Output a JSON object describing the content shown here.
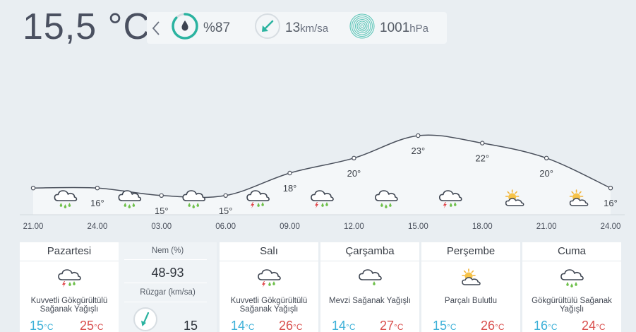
{
  "current": {
    "temperature": "15,5 °C",
    "humidity": "%87",
    "wind_value": "13",
    "wind_unit": "km/sa",
    "pressure_value": "1001",
    "pressure_unit": "hPa"
  },
  "chart_data": {
    "type": "line",
    "x": [
      "21.00",
      "24.00",
      "03.00",
      "06.00",
      "09.00",
      "12.00",
      "15.00",
      "18.00",
      "21.00",
      "24.00"
    ],
    "series": [
      {
        "values": [
          16,
          16,
          15,
          15,
          18,
          20,
          23,
          22,
          20,
          16
        ]
      }
    ],
    "value_labels": [
      "16°",
      "15°",
      "15°",
      "18°",
      "20°",
      "23°",
      "22°",
      "20°",
      "16°"
    ],
    "icons": [
      "rain-cloud",
      "rain-cloud",
      "rain-cloud",
      "thunder-rain-cloud",
      "thunder-rain-cloud",
      "rain-cloud",
      "thunder-rain-cloud",
      "sun-cloud",
      "sun-cloud"
    ],
    "grid": false
  },
  "extra": {
    "humidity_label": "Nem (%)",
    "humidity_range": "48-93",
    "wind_label": "Rüzgar (km/sa)",
    "wind_value": "15"
  },
  "days": [
    {
      "name": "Pazartesi",
      "icon": "thunder-rain-cloud",
      "desc": "Kuvvetli Gökgürültülü Sağanak Yağışlı",
      "min": "15",
      "max": "25",
      "unit": "°C"
    },
    {
      "name": "Salı",
      "icon": "thunder-rain-cloud",
      "desc": "Kuvvetli Gökgürültülü Sağanak Yağışlı",
      "min": "14",
      "max": "26",
      "unit": "°C"
    },
    {
      "name": "Çarşamba",
      "icon": "drizzle-cloud",
      "desc": "Mevzi Sağanak Yağışlı",
      "min": "14",
      "max": "27",
      "unit": "°C"
    },
    {
      "name": "Perşembe",
      "icon": "sun-cloud",
      "desc": "Parçalı Bulutlu",
      "min": "15",
      "max": "26",
      "unit": "°C"
    },
    {
      "name": "Cuma",
      "icon": "thunder-rain-cloud",
      "desc": "Gökgürültülü Sağanak Yağışlı",
      "min": "16",
      "max": "24",
      "unit": "°C"
    }
  ],
  "colors": {
    "accent": "#2bb3a0",
    "temp_min": "#3cb0d8",
    "temp_max": "#d9504e",
    "rain": "#6ec04a",
    "bolt": "#e0464a"
  }
}
